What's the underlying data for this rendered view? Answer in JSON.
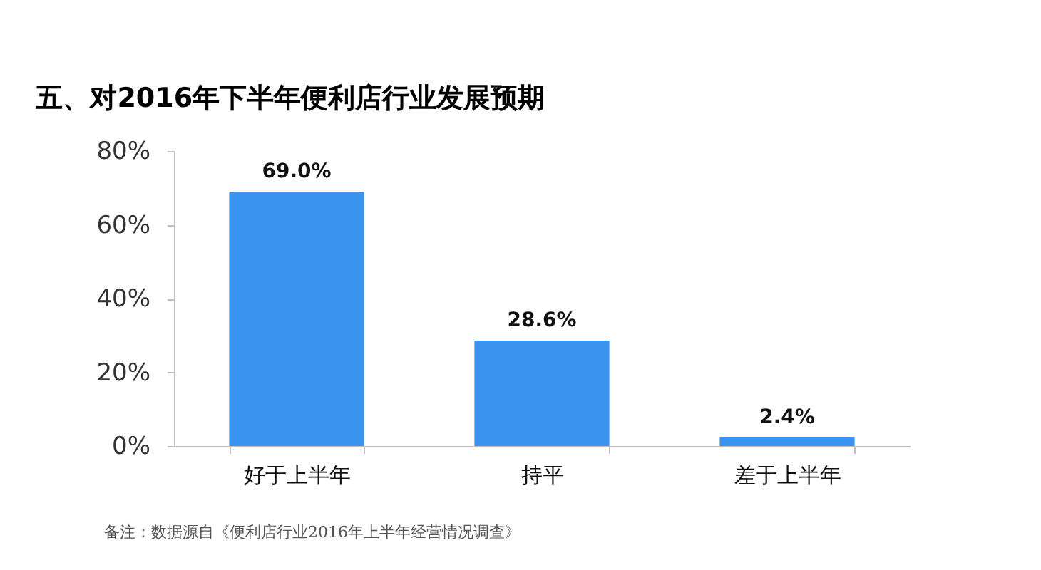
{
  "chart_data": {
    "type": "bar",
    "title": "五、对2016年下半年便利店行业发展预期",
    "categories": [
      "好于上半年",
      "持平",
      "差于上半年"
    ],
    "values": [
      69.0,
      28.6,
      2.4
    ],
    "color": "#3a95f2",
    "value_labels": [
      "69.0%",
      "28.6%",
      "2.4%"
    ],
    "ylim": [
      0,
      80
    ],
    "yticks": [
      {
        "value": 0,
        "label": "0%"
      },
      {
        "value": 20,
        "label": "20%"
      },
      {
        "value": 40,
        "label": "40%"
      },
      {
        "value": 60,
        "label": "60%"
      },
      {
        "value": 80,
        "label": "80%"
      }
    ],
    "grid": false,
    "annotations": [
      "备注：数据源自《便利店行业2016年上半年经营情况调查》"
    ]
  }
}
